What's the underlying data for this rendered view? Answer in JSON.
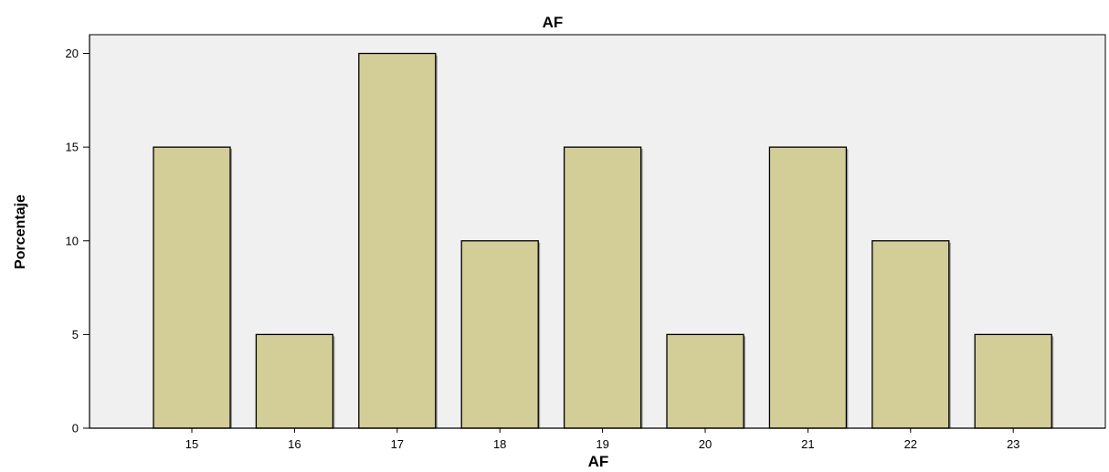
{
  "chart_data": {
    "type": "bar",
    "title": "AF",
    "xlabel": "AF",
    "ylabel": "Porcentaje",
    "categories": [
      "15",
      "16",
      "17",
      "18",
      "19",
      "20",
      "21",
      "22",
      "23"
    ],
    "values": [
      15,
      5,
      20,
      10,
      15,
      5,
      15,
      10,
      5
    ],
    "ylim": [
      0,
      21
    ],
    "yticks": [
      "0",
      "5",
      "10",
      "15",
      "20"
    ],
    "grid": false,
    "legend": "none",
    "colors": {
      "bar_fill": "#d3cd98",
      "bar_stroke": "#000000",
      "plot_background": "#f0f0f0"
    }
  }
}
